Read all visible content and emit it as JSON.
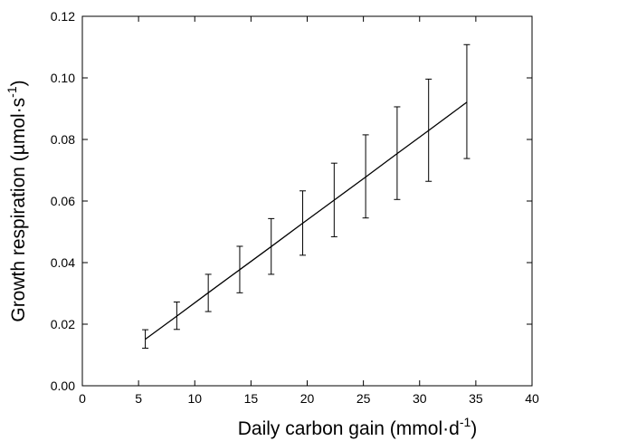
{
  "chart_data": {
    "type": "line",
    "title": "",
    "xlabel": "Daily carbon gain  (mmol·d",
    "xlabel_sup": "-1",
    "xlabel_end": ")",
    "ylabel": "Growth respiration  (µmol·s",
    "ylabel_sup": "-1",
    "ylabel_end": ")",
    "xlim": [
      0,
      40
    ],
    "ylim": [
      0,
      0.12
    ],
    "x_ticks": [
      0,
      5,
      10,
      15,
      20,
      25,
      30,
      35,
      40
    ],
    "x_tick_labels": [
      "0",
      "5",
      "10",
      "15",
      "20",
      "25",
      "30",
      "35",
      "40"
    ],
    "y_ticks": [
      0,
      0.02,
      0.04,
      0.06,
      0.08,
      0.1,
      0.12
    ],
    "y_tick_labels": [
      "0.00",
      "0.02",
      "0.04",
      "0.06",
      "0.08",
      "0.10",
      "0.12"
    ],
    "grid": false,
    "legend": "none",
    "line_color": "#000000",
    "series": [
      {
        "x": [
          5.6,
          8.4,
          11.2,
          14.0,
          16.8,
          19.6,
          22.4,
          25.2,
          28.0,
          30.8,
          34.2
        ],
        "y": [
          0.0151,
          0.0226,
          0.0302,
          0.0377,
          0.0452,
          0.0528,
          0.0603,
          0.0678,
          0.0754,
          0.0829,
          0.0921
        ],
        "err_low": [
          0.0122,
          0.0183,
          0.0241,
          0.0302,
          0.0362,
          0.0424,
          0.0484,
          0.0545,
          0.0605,
          0.0664,
          0.0738
        ],
        "err_high": [
          0.0182,
          0.0272,
          0.0362,
          0.0453,
          0.0543,
          0.0633,
          0.0723,
          0.0815,
          0.0906,
          0.0996,
          0.1108
        ]
      }
    ]
  }
}
